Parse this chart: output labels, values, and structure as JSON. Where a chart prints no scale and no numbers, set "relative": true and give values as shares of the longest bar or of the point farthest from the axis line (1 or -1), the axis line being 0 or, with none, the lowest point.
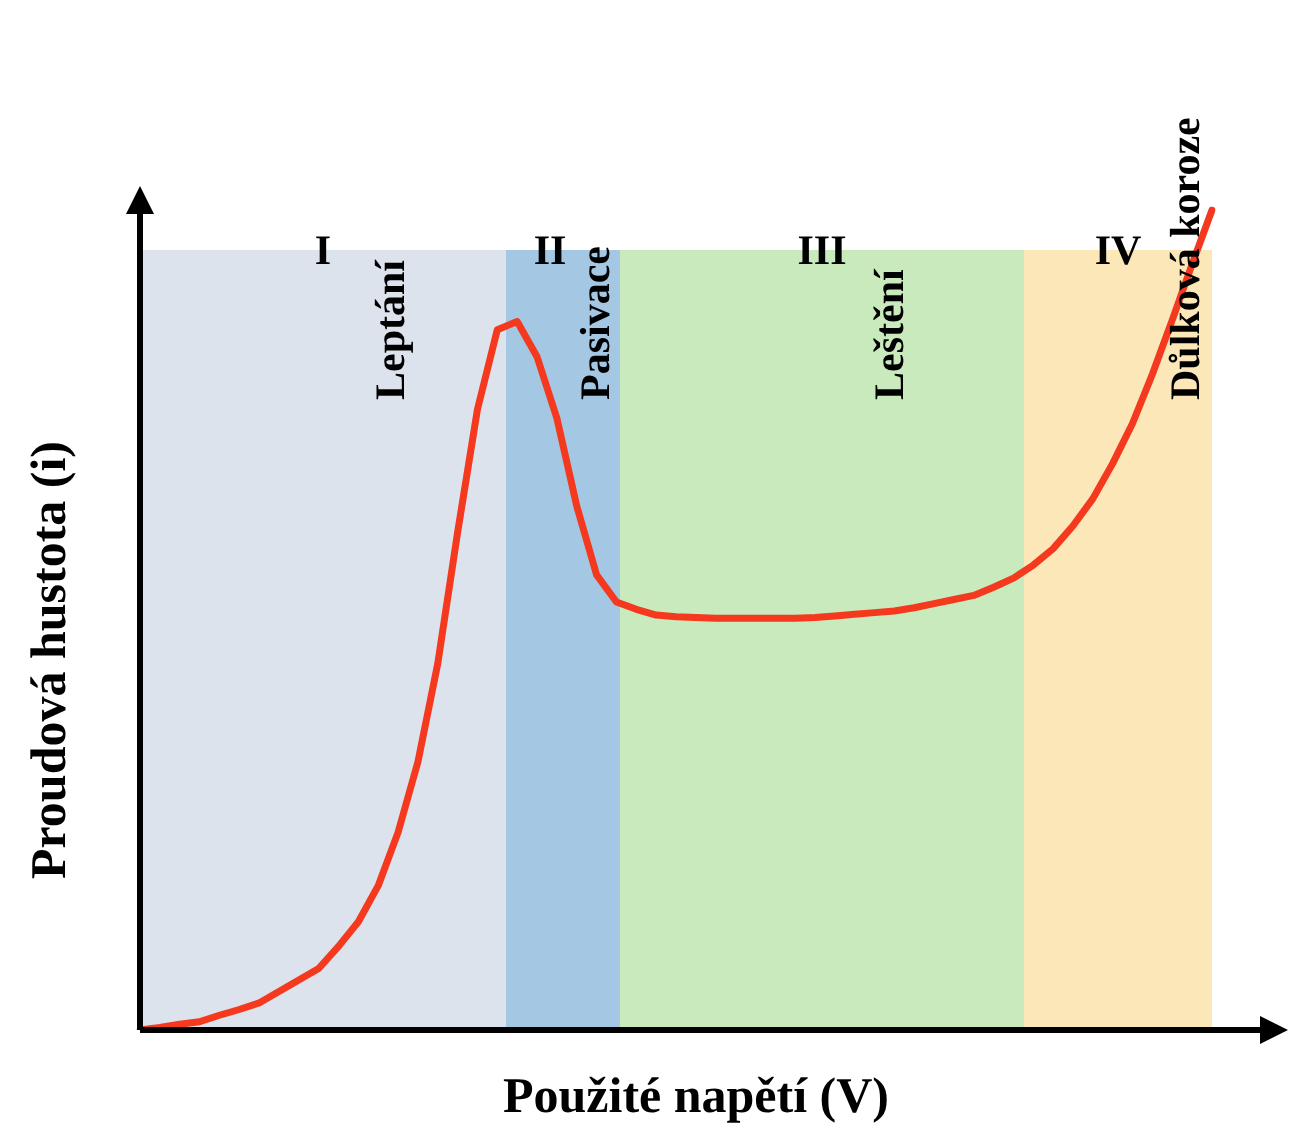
{
  "chart_data": {
    "type": "line",
    "relative": true,
    "xlabel": "Použité napětí (V)",
    "ylabel": "Proudová hustota (i)",
    "tick_labels": false,
    "legend": false,
    "marker": "none",
    "line_style": "solid",
    "categories": [
      null,
      null,
      null,
      null,
      null,
      null,
      null,
      null,
      null,
      null,
      null,
      null,
      null,
      null,
      null,
      null,
      null,
      null,
      null,
      null,
      null,
      null,
      null,
      null,
      null,
      null,
      null,
      null,
      null,
      null,
      null,
      null,
      null,
      null,
      null,
      null,
      null,
      null,
      null,
      null,
      null,
      null,
      null,
      null,
      null,
      null,
      null,
      null,
      null,
      null,
      null,
      null,
      null,
      null,
      null
    ],
    "series": [
      {
        "color": "#f4391e",
        "values": [
          0,
          0.003,
          0.007,
          0.01,
          0.018,
          0.025,
          0.033,
          0.047,
          0.061,
          0.075,
          0.102,
          0.132,
          0.176,
          0.241,
          0.327,
          0.447,
          0.607,
          0.757,
          0.854,
          0.864,
          0.821,
          0.746,
          0.639,
          0.555,
          0.522,
          0.513,
          0.506,
          0.504,
          0.503,
          0.502,
          0.502,
          0.502,
          0.502,
          0.502,
          0.503,
          0.505,
          0.507,
          0.509,
          0.511,
          0.515,
          0.52,
          0.525,
          0.53,
          0.54,
          0.551,
          0.567,
          0.587,
          0.615,
          0.648,
          0.691,
          0.74,
          0.8,
          0.866,
          0.934,
          1
        ]
      }
    ],
    "annotations": [
      "I",
      "Leptání",
      "II",
      "Pasivace",
      "III",
      "Leštění",
      "IV",
      "Důlková koroze"
    ]
  }
}
